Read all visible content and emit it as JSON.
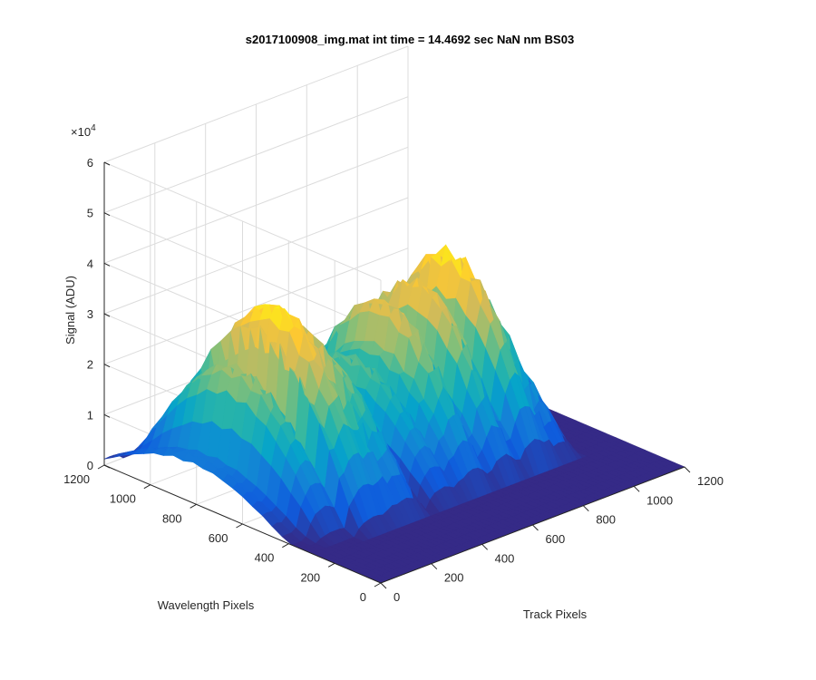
{
  "chart_data": {
    "type": "surface",
    "title": "s2017100908_img.mat int time = 14.4692 sec  NaN nm BS03",
    "xlabel": "Track Pixels",
    "ylabel": "Wavelength Pixels",
    "zlabel": "Signal (ADU)",
    "exponent_label": "×10",
    "exponent_power": "4",
    "xlim": [
      0,
      1200
    ],
    "ylim": [
      0,
      1200
    ],
    "zlim": [
      0,
      60000
    ],
    "x_ticks": [
      "0",
      "200",
      "400",
      "600",
      "800",
      "1000",
      "1200"
    ],
    "y_ticks": [
      "0",
      "200",
      "400",
      "600",
      "800",
      "1000",
      "1200"
    ],
    "z_ticks": [
      "0",
      "1",
      "2",
      "3",
      "4",
      "5",
      "6"
    ],
    "x_tick_values": [
      0,
      200,
      400,
      600,
      800,
      1000,
      1200
    ],
    "y_tick_values": [
      0,
      200,
      400,
      600,
      800,
      1000,
      1200
    ],
    "z_tick_values": [
      0,
      10000,
      20000,
      30000,
      40000,
      50000,
      60000
    ],
    "grid": true,
    "colormap": "parula",
    "colormap_stops": [
      "#352a87",
      "#0f5cdd",
      "#1481d6",
      "#06a4ca",
      "#2eb7a4",
      "#87bf77",
      "#d1bb59",
      "#fec832",
      "#f9fb0e"
    ],
    "peaks": [
      {
        "track_center": 20,
        "track_width": 55,
        "peak_signal": 9000,
        "wavelength_center": 820,
        "wavelength_width": 420
      },
      {
        "track_center": 130,
        "track_width": 75,
        "peak_signal": 26000,
        "wavelength_center": 760,
        "wavelength_width": 430
      },
      {
        "track_center": 250,
        "track_width": 80,
        "peak_signal": 37000,
        "wavelength_center": 720,
        "wavelength_width": 440
      },
      {
        "track_center": 370,
        "track_width": 75,
        "peak_signal": 27000,
        "wavelength_center": 700,
        "wavelength_width": 440
      },
      {
        "track_center": 520,
        "track_width": 70,
        "peak_signal": 22000,
        "wavelength_center": 690,
        "wavelength_width": 430
      },
      {
        "track_center": 640,
        "track_width": 70,
        "peak_signal": 31000,
        "wavelength_center": 680,
        "wavelength_width": 420
      },
      {
        "track_center": 760,
        "track_width": 65,
        "peak_signal": 33000,
        "wavelength_center": 670,
        "wavelength_width": 410
      },
      {
        "track_center": 880,
        "track_width": 70,
        "peak_signal": 37000,
        "wavelength_center": 660,
        "wavelength_width": 400
      },
      {
        "track_center": 980,
        "track_width": 60,
        "peak_signal": 20000,
        "wavelength_center": 640,
        "wavelength_width": 380
      }
    ]
  }
}
